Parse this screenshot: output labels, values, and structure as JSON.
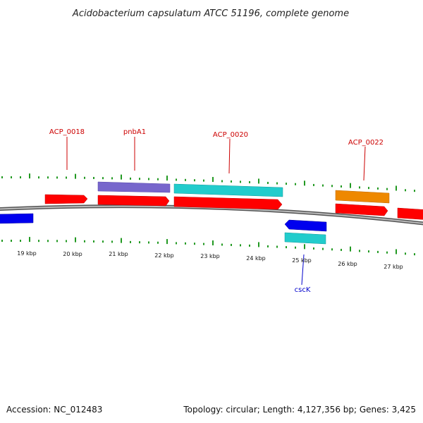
{
  "title": "Acidobacterium capsulatum ATCC 51196, complete genome",
  "footer": {
    "accession": "Accession: NC_012483",
    "summary": "Topology: circular; Length: 4,127,356 bp; Genes: 3,425"
  },
  "colors": {
    "cds": "#ff0000",
    "purple": "#7766cc",
    "cyan": "#22cccc",
    "orange": "#ee8800",
    "blue": "#0000ee",
    "tick": "#229922",
    "label_red": "#cc0000",
    "label_blue": "#0000cc",
    "backbone": "#888888"
  },
  "scale": {
    "unit": "kbp",
    "labels": [
      "19 kbp",
      "20 kbp",
      "21 kbp",
      "22 kbp",
      "23 kbp",
      "24 kbp",
      "25 kbp",
      "26 kbp",
      "27 kbp"
    ]
  },
  "gene_labels": [
    {
      "text": "ACP_0018",
      "color": "label_red"
    },
    {
      "text": "pnbA1",
      "color": "label_red"
    },
    {
      "text": "ACP_0020",
      "color": "label_red"
    },
    {
      "text": "ACP_0022",
      "color": "label_red"
    },
    {
      "text": "cscK",
      "color": "label_blue"
    }
  ]
}
